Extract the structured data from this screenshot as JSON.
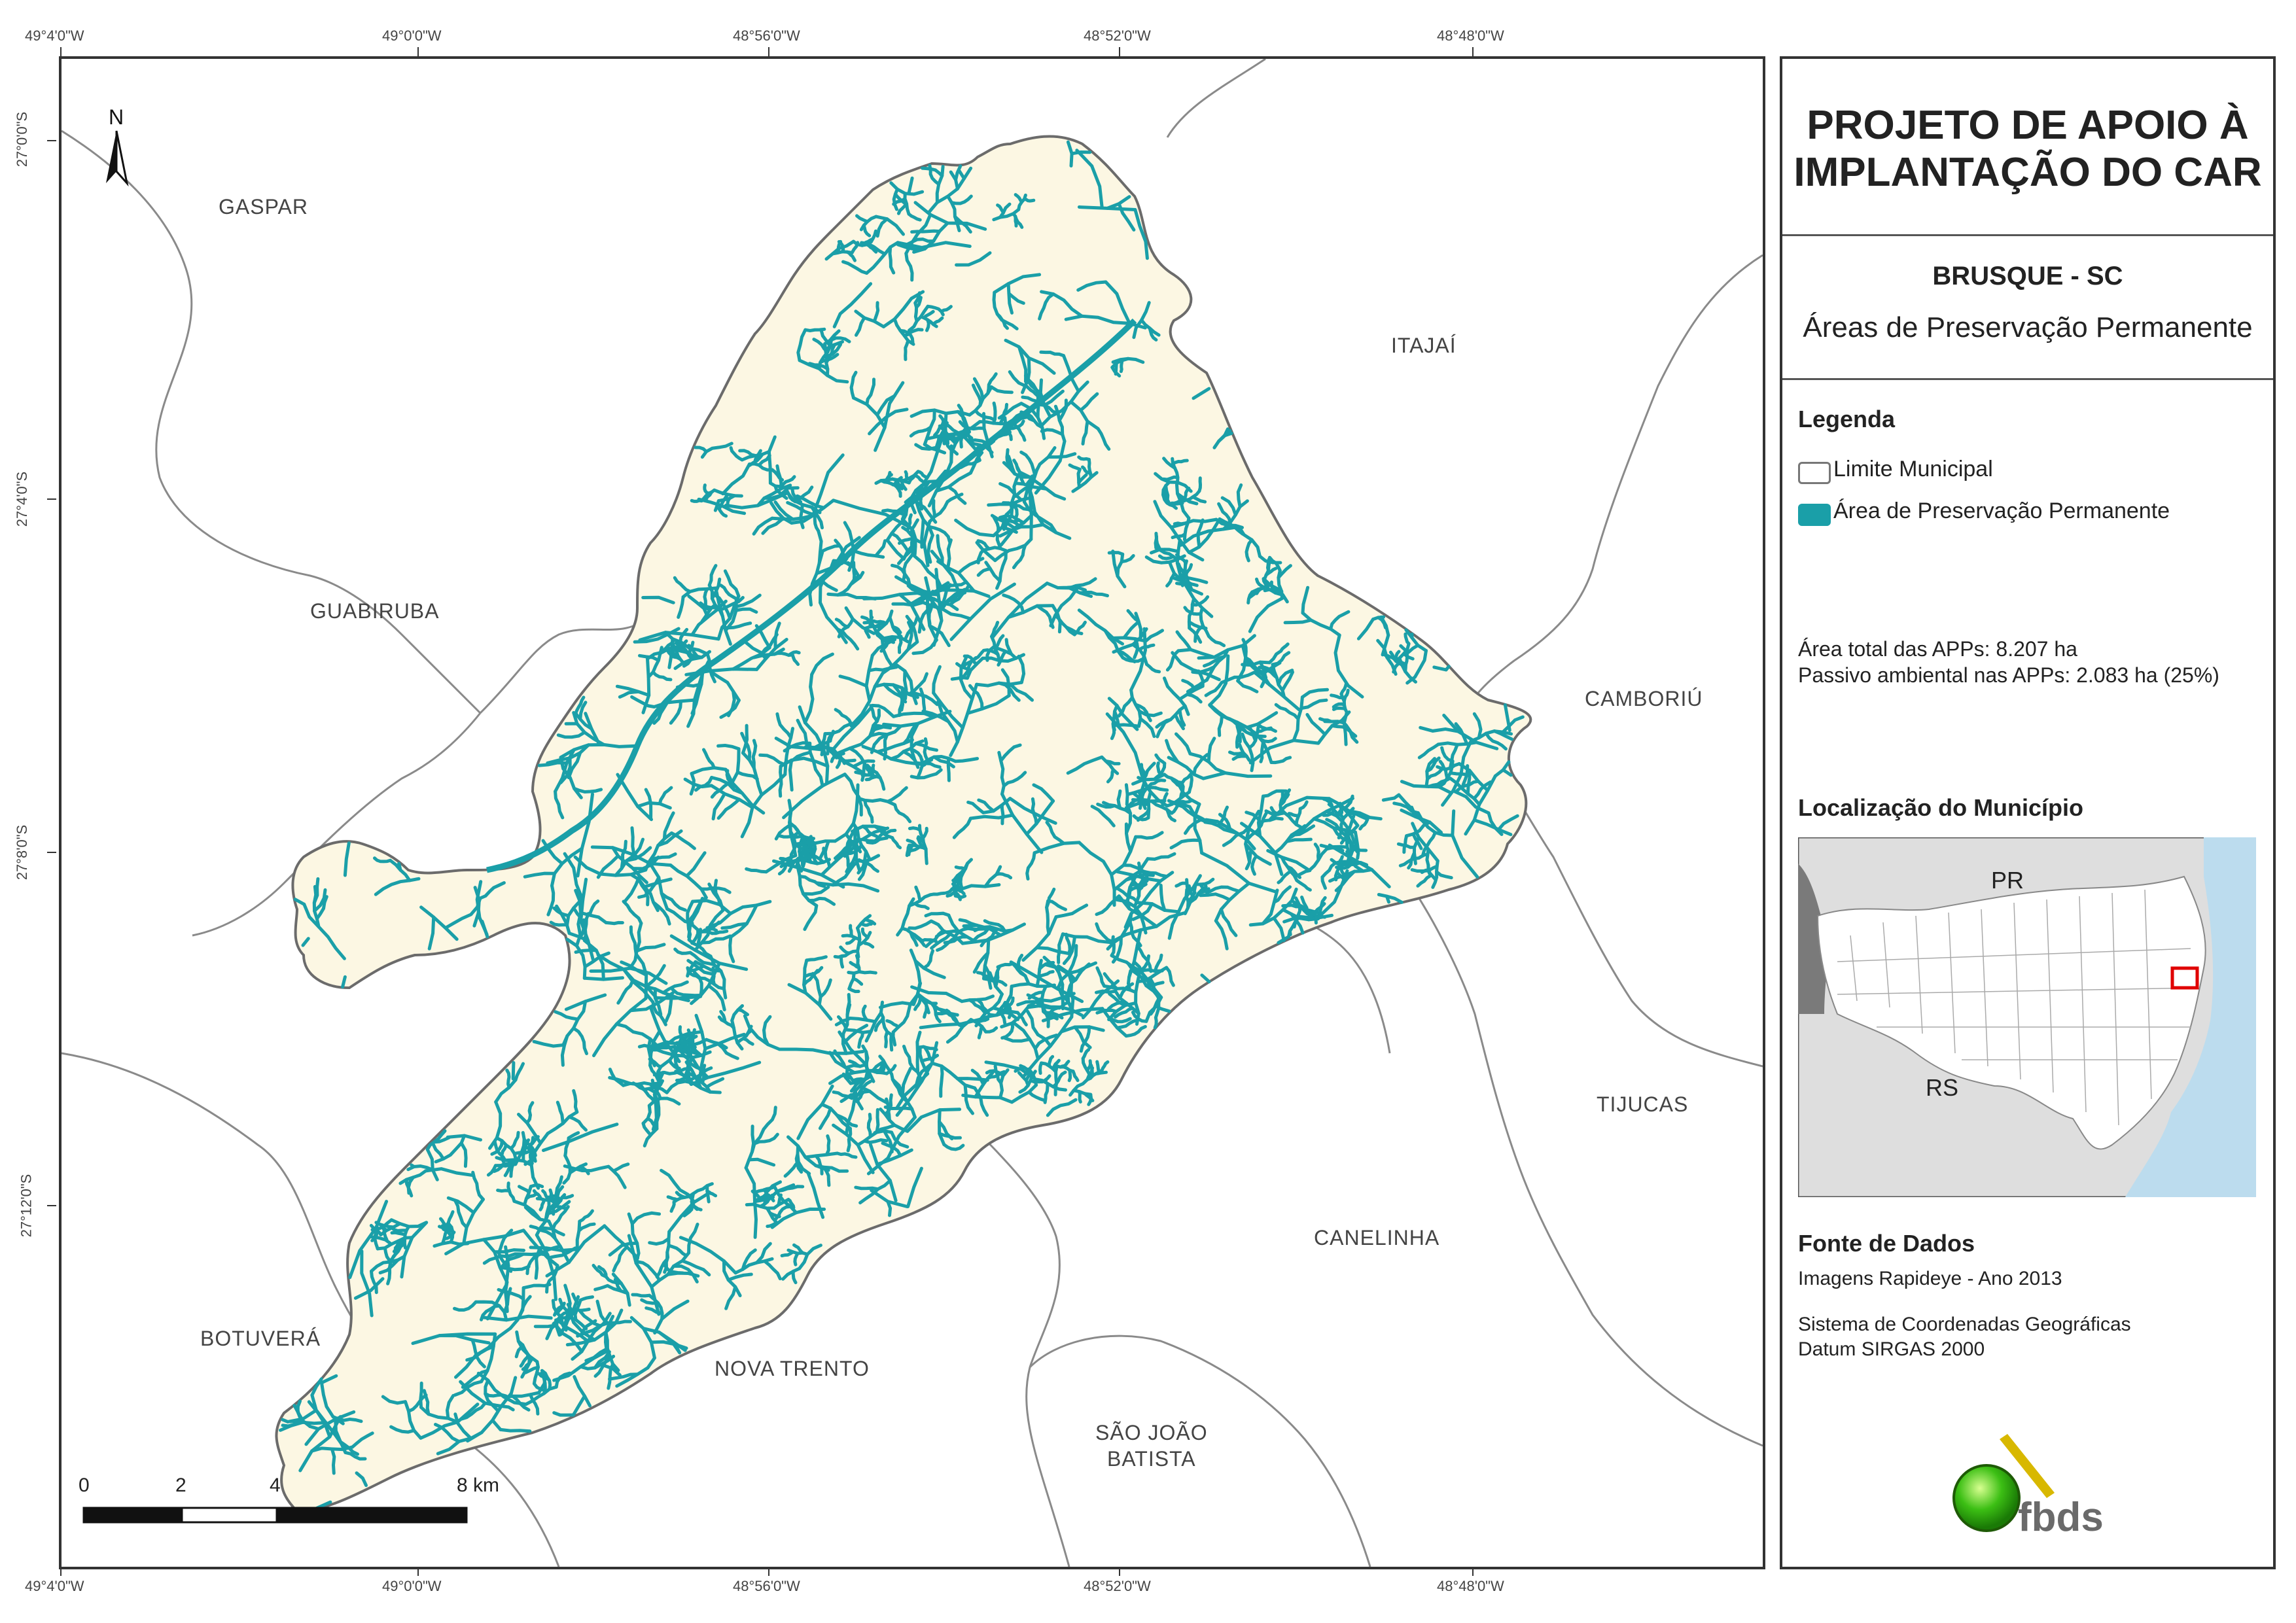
{
  "map": {
    "top_coords": [
      "49°4'0\"W",
      "49°0'0\"W",
      "48°56'0\"W",
      "48°52'0\"W",
      "48°48'0\"W"
    ],
    "bottom_coords": [
      "49°4'0\"W",
      "49°0'0\"W",
      "48°56'0\"W",
      "48°52'0\"W",
      "48°48'0\"W"
    ],
    "left_coords": [
      "27°0'0\"S",
      "27°4'0\"S",
      "27°8'0\"S",
      "27°12'0\"S"
    ],
    "north_label": "N",
    "municipalities": {
      "gaspar": "GASPAR",
      "itajai": "ITAJAÍ",
      "guabiruba": "GUABIRUBA",
      "camboriu": "CAMBORIÚ",
      "tijucas": "TIJUCAS",
      "canelinha": "CANELINHA",
      "botuvera": "BOTUVERÁ",
      "nova_trento": "NOVA TRENTO",
      "sao_joao_1": "SÃO JOÃO",
      "sao_joao_2": "BATISTA"
    },
    "scale_labels": [
      "0",
      "2",
      "4",
      "8 km"
    ],
    "colors": {
      "municipality_fill": "#FCF7E3",
      "app": "#1A9FA8",
      "boundary": "#777777"
    }
  },
  "panel": {
    "title_line1": "PROJETO DE APOIO À",
    "title_line2": "IMPLANTAÇÃO DO CAR",
    "municipality": "BRUSQUE - SC",
    "theme": "Áreas de Preservação Permanente",
    "legend_title": "Legenda",
    "legend_limit": "Limite Municipal",
    "legend_app": "Área de Preservação Permanente",
    "stat_total": "Área total das APPs: 8.207 ha",
    "stat_passivo": "Passivo ambiental nas APPs: 2.083 ha (25%)",
    "location_title": "Localização do Município",
    "inset_pr": "PR",
    "inset_rs": "RS",
    "sources_title": "Fonte de Dados",
    "source1": "Imagens Rapideye - Ano 2013",
    "source2": "Sistema de Coordenadas Geográficas",
    "source3": "Datum SIRGAS 2000",
    "logo_text": "fbds"
  }
}
